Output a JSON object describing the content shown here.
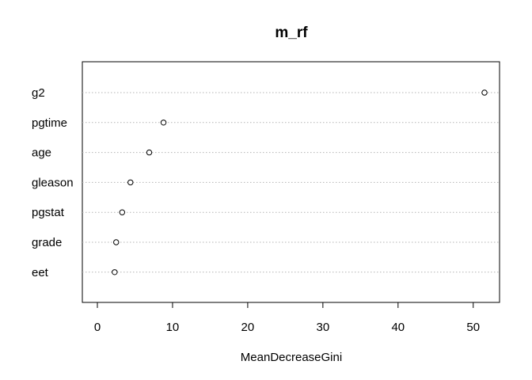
{
  "chart_data": {
    "type": "scatter",
    "subtype": "dotchart",
    "title": "m_rf",
    "xlabel": "MeanDecreaseGini",
    "ylabel": "",
    "xlim": [
      -2,
      53.5
    ],
    "xticks": [
      0,
      10,
      20,
      30,
      40,
      50
    ],
    "grid": "dotted horizontal guide lines",
    "legend": "none",
    "categories": [
      "g2",
      "pgtime",
      "age",
      "gleason",
      "pgstat",
      "grade",
      "eet"
    ],
    "values": [
      51.5,
      8.8,
      6.9,
      4.4,
      3.3,
      2.5,
      2.3
    ]
  }
}
